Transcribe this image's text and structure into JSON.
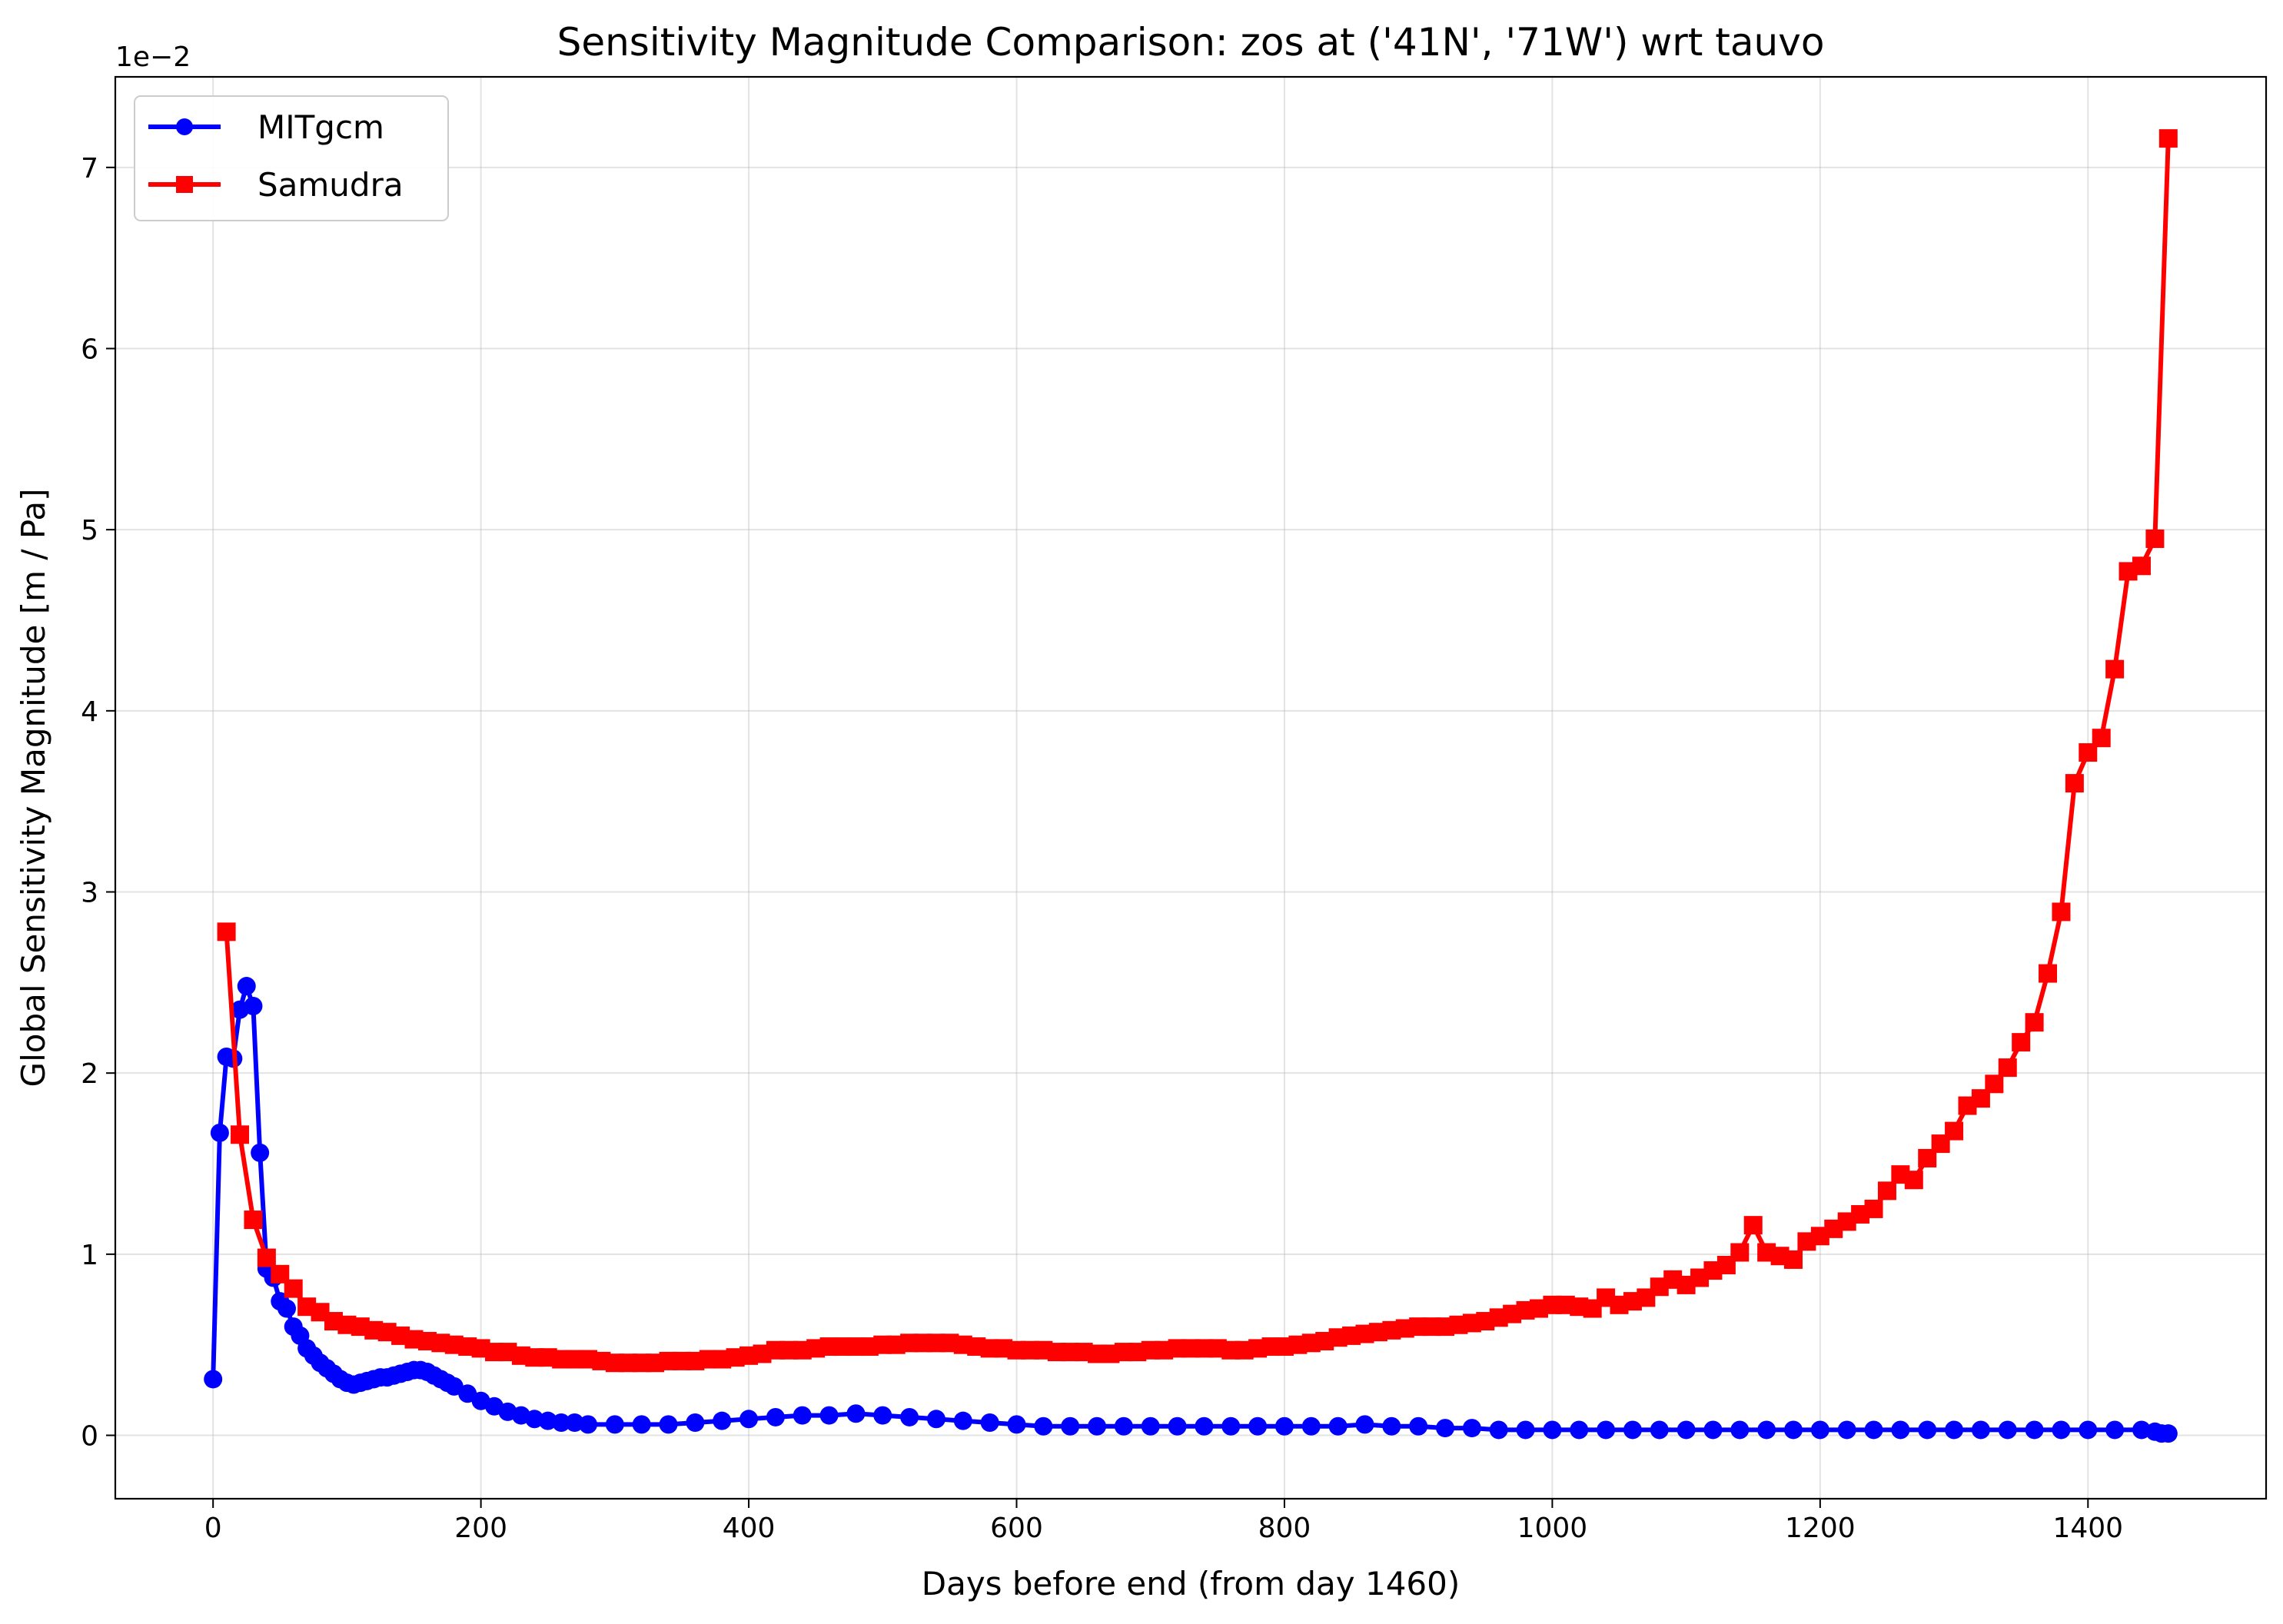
{
  "chart_data": {
    "type": "line",
    "title": "Sensitivity Magnitude Comparison: zos at ('41N', '71W') wrt tauvo",
    "xlabel": "Days before end (from day 1460)",
    "ylabel": "Global Sensitivity Magnitude [m / Pa]",
    "y_offset_label": "1e−2",
    "xlim": [
      -73,
      1533
    ],
    "ylim": [
      -0.35,
      7.5
    ],
    "y_unit_scale": 0.01,
    "x_ticks": [
      0,
      200,
      400,
      600,
      800,
      1000,
      1200,
      1400
    ],
    "x_tick_labels": [
      "0",
      "200",
      "400",
      "600",
      "800",
      "1000",
      "1200",
      "1400"
    ],
    "y_ticks": [
      0,
      1,
      2,
      3,
      4,
      5,
      6,
      7
    ],
    "y_tick_labels": [
      "0",
      "1",
      "2",
      "3",
      "4",
      "5",
      "6",
      "7"
    ],
    "grid": true,
    "legend_position": "top-left",
    "series": [
      {
        "name": "MITgcm",
        "color": "#0000ff",
        "marker": "circle",
        "x": [
          0,
          5,
          10,
          15,
          20,
          25,
          30,
          35,
          40,
          45,
          50,
          55,
          60,
          65,
          70,
          75,
          80,
          85,
          90,
          95,
          100,
          105,
          110,
          115,
          120,
          125,
          130,
          135,
          140,
          145,
          150,
          155,
          160,
          165,
          170,
          175,
          180,
          190,
          200,
          210,
          220,
          230,
          240,
          250,
          260,
          270,
          280,
          300,
          320,
          340,
          360,
          380,
          400,
          420,
          440,
          460,
          480,
          500,
          520,
          540,
          560,
          580,
          600,
          620,
          640,
          660,
          680,
          700,
          720,
          740,
          760,
          780,
          800,
          820,
          840,
          860,
          880,
          900,
          920,
          940,
          960,
          980,
          1000,
          1020,
          1040,
          1060,
          1080,
          1100,
          1120,
          1140,
          1160,
          1180,
          1200,
          1220,
          1240,
          1260,
          1280,
          1300,
          1320,
          1340,
          1360,
          1380,
          1400,
          1420,
          1440,
          1450,
          1455,
          1460
        ],
        "y": [
          0.31,
          1.67,
          2.09,
          2.08,
          2.35,
          2.48,
          2.37,
          1.56,
          0.92,
          0.87,
          0.74,
          0.7,
          0.6,
          0.55,
          0.48,
          0.44,
          0.4,
          0.37,
          0.34,
          0.31,
          0.29,
          0.28,
          0.29,
          0.3,
          0.31,
          0.32,
          0.32,
          0.33,
          0.34,
          0.35,
          0.36,
          0.36,
          0.35,
          0.33,
          0.31,
          0.29,
          0.27,
          0.23,
          0.19,
          0.16,
          0.13,
          0.11,
          0.09,
          0.08,
          0.07,
          0.07,
          0.06,
          0.06,
          0.06,
          0.06,
          0.07,
          0.08,
          0.09,
          0.1,
          0.11,
          0.11,
          0.12,
          0.11,
          0.1,
          0.09,
          0.08,
          0.07,
          0.06,
          0.05,
          0.05,
          0.05,
          0.05,
          0.05,
          0.05,
          0.05,
          0.05,
          0.05,
          0.05,
          0.05,
          0.05,
          0.06,
          0.05,
          0.05,
          0.04,
          0.04,
          0.03,
          0.03,
          0.03,
          0.03,
          0.03,
          0.03,
          0.03,
          0.03,
          0.03,
          0.03,
          0.03,
          0.03,
          0.03,
          0.03,
          0.03,
          0.03,
          0.03,
          0.03,
          0.03,
          0.03,
          0.03,
          0.03,
          0.03,
          0.03,
          0.03,
          0.02,
          0.01,
          0.01
        ]
      },
      {
        "name": "Samudra",
        "color": "#ff0000",
        "marker": "square",
        "x": [
          10,
          20,
          30,
          40,
          50,
          60,
          70,
          80,
          90,
          100,
          110,
          120,
          130,
          140,
          150,
          160,
          170,
          180,
          190,
          200,
          210,
          220,
          230,
          240,
          250,
          260,
          270,
          280,
          290,
          300,
          310,
          320,
          330,
          340,
          350,
          360,
          370,
          380,
          390,
          400,
          410,
          420,
          430,
          440,
          450,
          460,
          470,
          480,
          490,
          500,
          510,
          520,
          530,
          540,
          550,
          560,
          570,
          580,
          590,
          600,
          610,
          620,
          630,
          640,
          650,
          660,
          670,
          680,
          690,
          700,
          710,
          720,
          730,
          740,
          750,
          760,
          770,
          780,
          790,
          800,
          810,
          820,
          830,
          840,
          850,
          860,
          870,
          880,
          890,
          900,
          910,
          920,
          930,
          940,
          950,
          960,
          970,
          980,
          990,
          1000,
          1010,
          1020,
          1030,
          1040,
          1050,
          1060,
          1070,
          1080,
          1090,
          1100,
          1110,
          1120,
          1130,
          1140,
          1150,
          1160,
          1170,
          1180,
          1190,
          1200,
          1210,
          1220,
          1230,
          1240,
          1250,
          1260,
          1270,
          1280,
          1290,
          1300,
          1310,
          1320,
          1330,
          1340,
          1350,
          1360,
          1370,
          1380,
          1390,
          1400,
          1410,
          1420,
          1430,
          1440,
          1450,
          1460
        ],
        "y": [
          2.78,
          1.66,
          1.19,
          0.98,
          0.89,
          0.81,
          0.71,
          0.68,
          0.63,
          0.61,
          0.6,
          0.58,
          0.57,
          0.55,
          0.53,
          0.52,
          0.51,
          0.5,
          0.49,
          0.48,
          0.46,
          0.46,
          0.44,
          0.43,
          0.43,
          0.42,
          0.42,
          0.42,
          0.41,
          0.4,
          0.4,
          0.4,
          0.4,
          0.41,
          0.41,
          0.41,
          0.42,
          0.42,
          0.43,
          0.44,
          0.45,
          0.47,
          0.47,
          0.47,
          0.48,
          0.49,
          0.49,
          0.49,
          0.49,
          0.5,
          0.5,
          0.51,
          0.51,
          0.51,
          0.51,
          0.5,
          0.49,
          0.48,
          0.48,
          0.47,
          0.47,
          0.47,
          0.46,
          0.46,
          0.46,
          0.45,
          0.45,
          0.46,
          0.46,
          0.47,
          0.47,
          0.48,
          0.48,
          0.48,
          0.48,
          0.47,
          0.47,
          0.48,
          0.49,
          0.49,
          0.5,
          0.51,
          0.52,
          0.54,
          0.55,
          0.56,
          0.57,
          0.58,
          0.59,
          0.6,
          0.6,
          0.6,
          0.61,
          0.62,
          0.63,
          0.65,
          0.67,
          0.69,
          0.7,
          0.72,
          0.72,
          0.71,
          0.7,
          0.76,
          0.72,
          0.74,
          0.76,
          0.82,
          0.86,
          0.83,
          0.87,
          0.91,
          0.94,
          1.01,
          1.16,
          1.01,
          0.99,
          0.97,
          1.07,
          1.1,
          1.14,
          1.18,
          1.22,
          1.25,
          1.35,
          1.44,
          1.41,
          1.53,
          1.61,
          1.68,
          1.82,
          1.86,
          1.94,
          2.03,
          2.17,
          2.28,
          2.55,
          2.89,
          3.6,
          3.77,
          3.85,
          4.23,
          4.77,
          4.8,
          4.95,
          7.16
        ]
      }
    ]
  }
}
